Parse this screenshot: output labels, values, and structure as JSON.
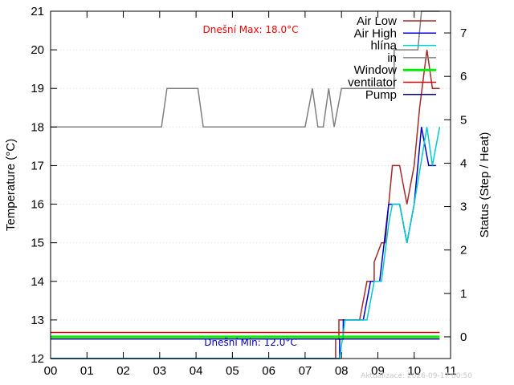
{
  "chart_data": {
    "type": "line",
    "xlabel": "",
    "ylabel": "Temperature (°C)",
    "y2label": "Status (Step / Heat)",
    "xlim": [
      0,
      11
    ],
    "ylim": [
      12,
      21
    ],
    "y2lim": [
      -0.5,
      7.5
    ],
    "x_ticks": [
      0,
      1,
      2,
      3,
      4,
      5,
      6,
      7,
      8,
      9,
      10,
      11
    ],
    "x_tick_labels": [
      "00",
      "01",
      "02",
      "03",
      "04",
      "05",
      "06",
      "07",
      "08",
      "09",
      "10",
      "11"
    ],
    "y_ticks": [
      12,
      13,
      14,
      15,
      16,
      17,
      18,
      19,
      20,
      21
    ],
    "y2_ticks": [
      0,
      1,
      2,
      3,
      4,
      5,
      6,
      7
    ],
    "grid": true,
    "legend_position": "top-right",
    "series": [
      {
        "name": "Air Low",
        "color": "#a52a2a",
        "width": 1.5,
        "axis": "y",
        "points": [
          [
            0,
            12
          ],
          [
            7.84,
            12
          ],
          [
            7.84,
            12.5
          ],
          [
            7.93,
            12.5
          ],
          [
            7.93,
            13
          ],
          [
            8.1,
            13
          ],
          [
            8.3,
            13
          ],
          [
            8.5,
            13
          ],
          [
            8.7,
            14
          ],
          [
            8.9,
            14
          ],
          [
            8.9,
            14.5
          ],
          [
            9.1,
            15
          ],
          [
            9.2,
            15
          ],
          [
            9.3,
            16
          ],
          [
            9.4,
            17
          ],
          [
            9.6,
            17
          ],
          [
            9.8,
            16
          ],
          [
            10,
            17
          ],
          [
            10.15,
            18.5
          ],
          [
            10.35,
            20
          ],
          [
            10.5,
            19
          ],
          [
            10.7,
            19
          ]
        ]
      },
      {
        "name": "Air High",
        "color": "#0000cc",
        "width": 1.5,
        "axis": "y",
        "points": [
          [
            0,
            12
          ],
          [
            7.95,
            12
          ],
          [
            7.95,
            12.5
          ],
          [
            8.05,
            12.5
          ],
          [
            8.05,
            13
          ],
          [
            8.6,
            13
          ],
          [
            8.8,
            14
          ],
          [
            9.05,
            14
          ],
          [
            9.3,
            16
          ],
          [
            9.4,
            16
          ],
          [
            9.6,
            16
          ],
          [
            9.8,
            15
          ],
          [
            10,
            16
          ],
          [
            10.2,
            18
          ],
          [
            10.4,
            17
          ],
          [
            10.6,
            17
          ]
        ]
      },
      {
        "name": "hlína",
        "color": "#00cccc",
        "width": 1.5,
        "axis": "y",
        "points": [
          [
            0,
            12
          ],
          [
            7.95,
            12
          ],
          [
            8.1,
            13
          ],
          [
            8.7,
            13
          ],
          [
            8.9,
            14
          ],
          [
            9.1,
            14
          ],
          [
            9.3,
            15.5
          ],
          [
            9.4,
            16
          ],
          [
            9.6,
            16
          ],
          [
            9.8,
            15
          ],
          [
            10,
            16
          ],
          [
            10.35,
            18
          ],
          [
            10.5,
            17
          ],
          [
            10.7,
            18
          ]
        ]
      },
      {
        "name": "in",
        "color": "#808080",
        "width": 1.5,
        "axis": "y",
        "points": [
          [
            0,
            18
          ],
          [
            3.05,
            18
          ],
          [
            3.2,
            19
          ],
          [
            4.05,
            19
          ],
          [
            4.2,
            18
          ],
          [
            7.0,
            18
          ],
          [
            7.2,
            19
          ],
          [
            7.35,
            18
          ],
          [
            7.5,
            18
          ],
          [
            7.65,
            19
          ],
          [
            7.8,
            18
          ],
          [
            8,
            19
          ],
          [
            9.2,
            19
          ],
          [
            9.45,
            19
          ],
          [
            9.45,
            20
          ],
          [
            10.1,
            20
          ],
          [
            10.2,
            21
          ],
          [
            10.7,
            21
          ]
        ]
      },
      {
        "name": "Window",
        "color": "#00ee00",
        "width": 3,
        "axis": "y2",
        "points": [
          [
            0,
            0
          ],
          [
            10.7,
            0
          ]
        ]
      },
      {
        "name": "ventilator",
        "color": "#dd0000",
        "width": 1.5,
        "axis": "y2",
        "points": [
          [
            0,
            0.1
          ],
          [
            10.7,
            0.1
          ]
        ]
      },
      {
        "name": "Pump",
        "color": "#000080",
        "width": 1.5,
        "axis": "y2",
        "points": [
          [
            0,
            -0.05
          ],
          [
            10.7,
            -0.05
          ]
        ]
      }
    ],
    "annotations": {
      "max_text": "Dnešní Max: 18.0°C",
      "min_text": "Dnešní Min: 12.0°C"
    },
    "footer": "Aktualizace: 2026-09-17 00:50"
  }
}
